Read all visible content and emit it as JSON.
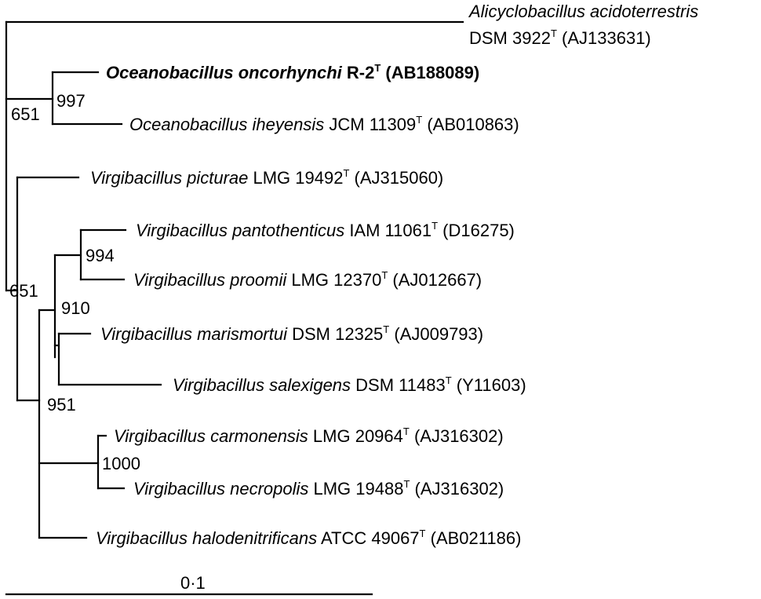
{
  "tree": {
    "taxa": [
      {
        "id": "alicyclobacillus",
        "genus": "Alicyclobacillus acidoterrestris",
        "strain_line": "DSM 3922",
        "type_mark": "T",
        "accession": " (AJ133631)",
        "highlight": false
      },
      {
        "id": "o-oncorhynchi",
        "genus": "Oceanobacillus oncorhynchi",
        "strain": " R-2",
        "type_mark": "T",
        "accession": " (AB188089)",
        "highlight": true
      },
      {
        "id": "o-iheyensis",
        "genus": "Oceanobacillus iheyensis",
        "strain": " JCM 11309",
        "type_mark": "T",
        "accession": " (AB010863)",
        "highlight": false
      },
      {
        "id": "v-picturae",
        "genus": "Virgibacillus picturae",
        "strain": " LMG 19492",
        "type_mark": "T",
        "accession": " (AJ315060)",
        "highlight": false
      },
      {
        "id": "v-pantothenticus",
        "genus": "Virgibacillus pantothenticus",
        "strain": " IAM 11061",
        "type_mark": "T",
        "accession": " (D16275)",
        "highlight": false
      },
      {
        "id": "v-proomii",
        "genus": "Virgibacillus proomii",
        "strain": " LMG 12370",
        "type_mark": "T",
        "accession": " (AJ012667)",
        "highlight": false
      },
      {
        "id": "v-marismortui",
        "genus": "Virgibacillus marismortui",
        "strain": " DSM 12325",
        "type_mark": "T",
        "accession": " (AJ009793)",
        "highlight": false
      },
      {
        "id": "v-salexigens",
        "genus": "Virgibacillus salexigens",
        "strain": " DSM 11483",
        "type_mark": "T",
        "accession": " (Y11603)",
        "highlight": false
      },
      {
        "id": "v-carmonensis",
        "genus": "Virgibacillus carmonensis",
        "strain": " LMG 20964",
        "type_mark": "T",
        "accession": " (AJ316302)",
        "highlight": false
      },
      {
        "id": "v-necropolis",
        "genus": "Virgibacillus necropolis",
        "strain": " LMG 19488",
        "type_mark": "T",
        "accession": " (AJ316302)",
        "highlight": false
      },
      {
        "id": "v-halodenitrificans",
        "genus": "Virgibacillus halodenitrificans",
        "strain": " ATCC 49067",
        "type_mark": "T",
        "accession": " (AB021186)",
        "highlight": false
      }
    ],
    "bootstrap": {
      "oceano_outer": "651",
      "oceano_pair": "997",
      "virgi_outer": "651",
      "panto_proomii": "994",
      "panto_group": "910",
      "virgi_inner": "951",
      "carmo_necro": "1000"
    },
    "scale": {
      "label": "0·1",
      "value": 0.1
    }
  },
  "colors": {
    "ink": "#000000",
    "background": "#ffffff"
  }
}
